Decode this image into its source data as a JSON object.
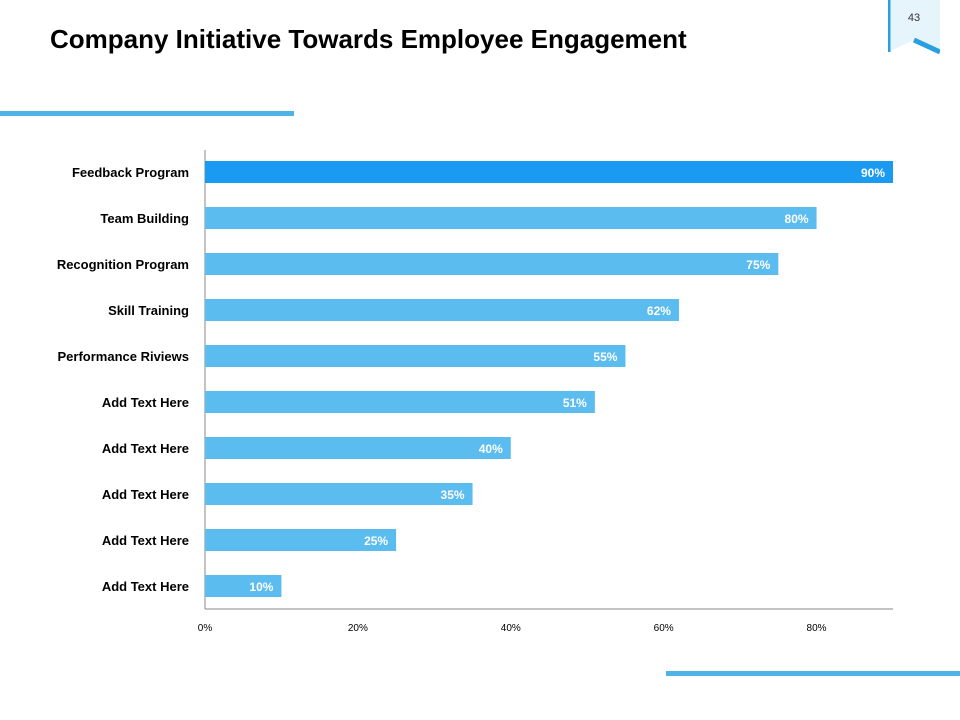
{
  "slide": {
    "title": "Company Initiative Towards Employee Engagement",
    "page_number": "43"
  },
  "colors": {
    "accent": "#4fb3e6",
    "bar": "#5bbcef",
    "bar_highlight": "#1a9af0",
    "badge_fill": "#e6f4fb",
    "badge_border": "#2a9fe0",
    "axis": "#888888"
  },
  "chart_data": {
    "type": "bar",
    "orientation": "horizontal",
    "title": "",
    "categories": [
      "Feedback Program",
      "Team Building",
      "Recognition Program",
      "Skill Training",
      "Performance Riviews",
      "Add Text Here",
      "Add Text Here",
      "Add Text Here",
      "Add Text Here",
      "Add Text Here"
    ],
    "values": [
      90,
      80,
      75,
      62,
      55,
      51,
      40,
      35,
      25,
      10
    ],
    "value_labels": [
      "90%",
      "80%",
      "75%",
      "62%",
      "55%",
      "51%",
      "40%",
      "35%",
      "25%",
      "10%"
    ],
    "highlight_index": 0,
    "xlim": [
      0,
      90
    ],
    "x_ticks": [
      0,
      20,
      40,
      60,
      80
    ],
    "x_tick_labels": [
      "0%",
      "20%",
      "40%",
      "60%",
      "80%"
    ],
    "xlabel": "",
    "ylabel": "",
    "grid": false
  }
}
